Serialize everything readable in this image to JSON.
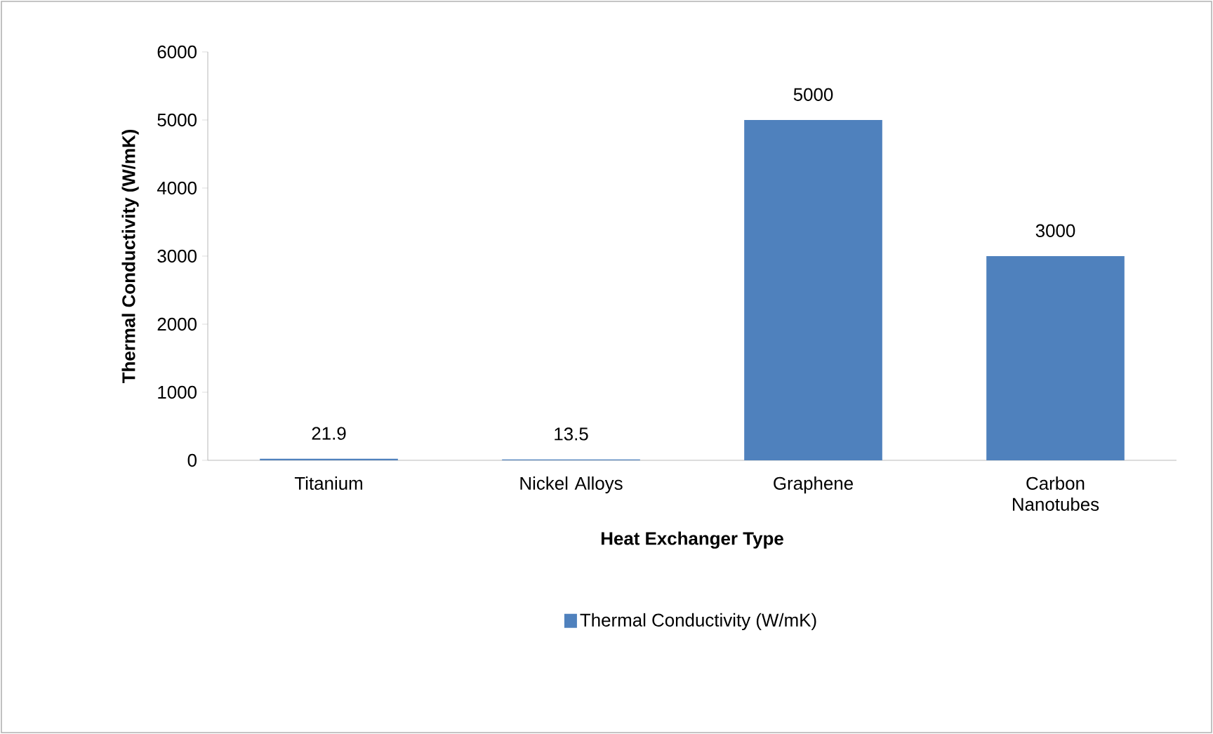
{
  "chart_data": {
    "type": "bar",
    "categories": [
      "Titanium",
      "Nickel Alloys",
      "Graphene",
      "Carbon Nanotubes"
    ],
    "series": [
      {
        "name": "Thermal Conductivity (W/mK)",
        "color": "#4f81bd",
        "values": [
          21.9,
          13.5,
          5000,
          3000
        ]
      }
    ],
    "xlabel": "Heat Exchanger Type",
    "ylabel": "Thermal Conductivity (W/mK)",
    "ylim": [
      0,
      6000
    ],
    "yticks": [
      0,
      1000,
      2000,
      3000,
      4000,
      5000,
      6000
    ],
    "data_labels": true,
    "legend": "bottom",
    "grid": false
  }
}
